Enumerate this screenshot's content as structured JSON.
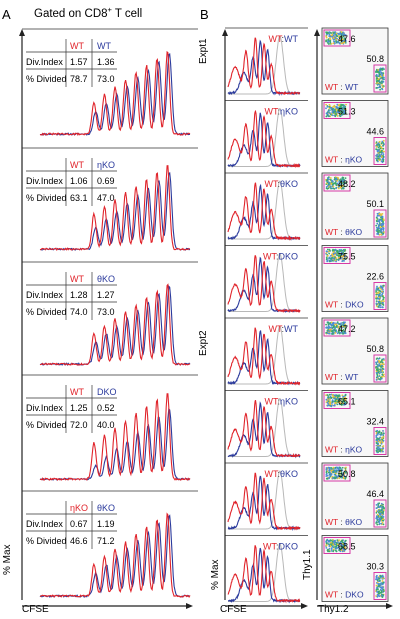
{
  "panel_a": {
    "letter": "A",
    "header": "Gated on CD8",
    "header_sup": "+",
    "header_tail": " T cell",
    "y_axis_label": "% Max",
    "x_axis_label": "CFSE",
    "row_labels": [
      "Div.Index",
      "% Divided"
    ],
    "subpanels": [
      {
        "col1": "WT",
        "col2": "WT",
        "c1": "red",
        "c2": "blue",
        "div_index": [
          "1.57",
          "1.36"
        ],
        "pct_divided": [
          "78.7",
          "73.0"
        ]
      },
      {
        "col1": "WT",
        "col2": "ηKO",
        "c1": "red",
        "c2": "blue",
        "div_index": [
          "1.06",
          "0.69"
        ],
        "pct_divided": [
          "63.1",
          "47.0"
        ]
      },
      {
        "col1": "WT",
        "col2": "θKO",
        "c1": "red",
        "c2": "blue",
        "div_index": [
          "1.28",
          "1.27"
        ],
        "pct_divided": [
          "74.0",
          "73.0"
        ]
      },
      {
        "col1": "WT",
        "col2": "DKO",
        "c1": "red",
        "c2": "blue",
        "div_index": [
          "1.25",
          "0.52"
        ],
        "pct_divided": [
          "72.0",
          "40.0"
        ]
      },
      {
        "col1": "ηKO",
        "col2": "θKO",
        "c1": "red",
        "c2": "blue",
        "div_index": [
          "0.67",
          "1.19"
        ],
        "pct_divided": [
          "46.6",
          "71.2"
        ]
      }
    ]
  },
  "panel_b": {
    "letter": "B",
    "expt1_label": "Expt1",
    "expt2_label": "Expt2",
    "y_axis_label": "% Max",
    "x_axis_label": "CFSE",
    "dot_y_label": "Thy1.1",
    "dot_x_label": "Thy1.2",
    "rows": [
      {
        "a": "WT",
        "b": "WT",
        "top": "47.6",
        "bottom": "50.8"
      },
      {
        "a": "WT",
        "b": "ηKO",
        "top": "51.3",
        "bottom": "44.6"
      },
      {
        "a": "WT",
        "b": "θKO",
        "top": "48.2",
        "bottom": "50.1"
      },
      {
        "a": "WT",
        "b": "DKO",
        "top": "75.5",
        "bottom": "22.6"
      },
      {
        "a": "WT",
        "b": "WT",
        "top": "47.2",
        "bottom": "50.8"
      },
      {
        "a": "WT",
        "b": "ηKO",
        "top": "65.1",
        "bottom": "32.4"
      },
      {
        "a": "WT",
        "b": "θKO",
        "top": "50.8",
        "bottom": "46.4"
      },
      {
        "a": "WT",
        "b": "DKO",
        "top": "68.5",
        "bottom": "30.3"
      }
    ]
  },
  "colors": {
    "red": "#e0242b",
    "blue": "#2b3a9c",
    "grey": "#b8b8b8",
    "gate": "#d63aa6",
    "axis": "#222222"
  }
}
